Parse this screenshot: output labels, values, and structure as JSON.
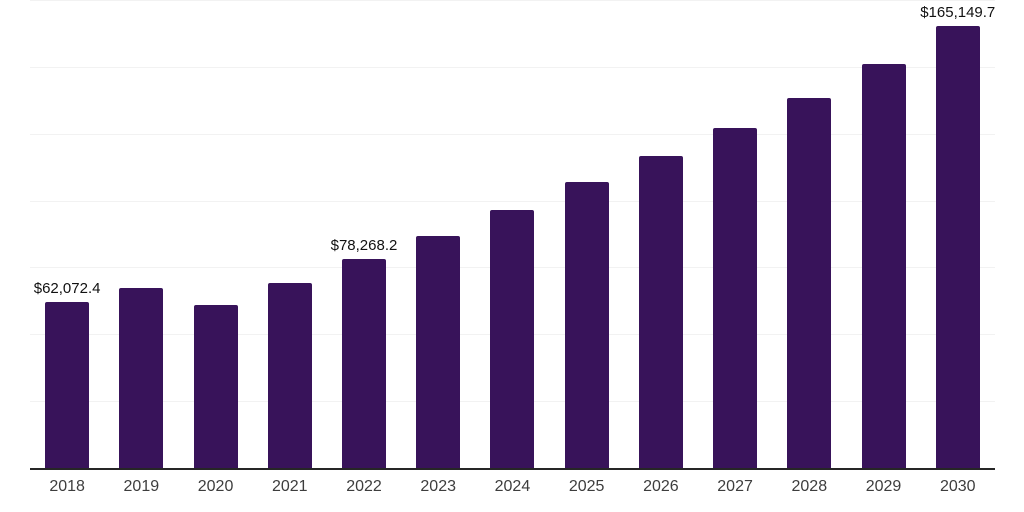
{
  "chart_data": {
    "type": "bar",
    "title": "",
    "xlabel": "",
    "ylabel": "",
    "categories": [
      "2018",
      "2019",
      "2020",
      "2021",
      "2022",
      "2023",
      "2024",
      "2025",
      "2026",
      "2027",
      "2028",
      "2029",
      "2030"
    ],
    "values": [
      62072.4,
      67500,
      60800,
      69000,
      78268.2,
      86900,
      96500,
      106800,
      116800,
      127200,
      138400,
      151000,
      165149.7
    ],
    "value_labels": [
      "$62,072.4",
      "",
      "",
      "",
      "$78,268.2",
      "",
      "",
      "",
      "",
      "",
      "",
      "",
      "$165,149.7"
    ],
    "ylim": [
      0,
      175000
    ],
    "gridline_step": 25000,
    "grid": "horizontal",
    "legend_position": "none",
    "colors": {
      "bar": "#38135A",
      "value_label": "#111111",
      "axis_tick_label": "#3d3d3d",
      "gridline": "#f2f2f2",
      "axis_line": "#262626",
      "background": "#ffffff"
    }
  }
}
